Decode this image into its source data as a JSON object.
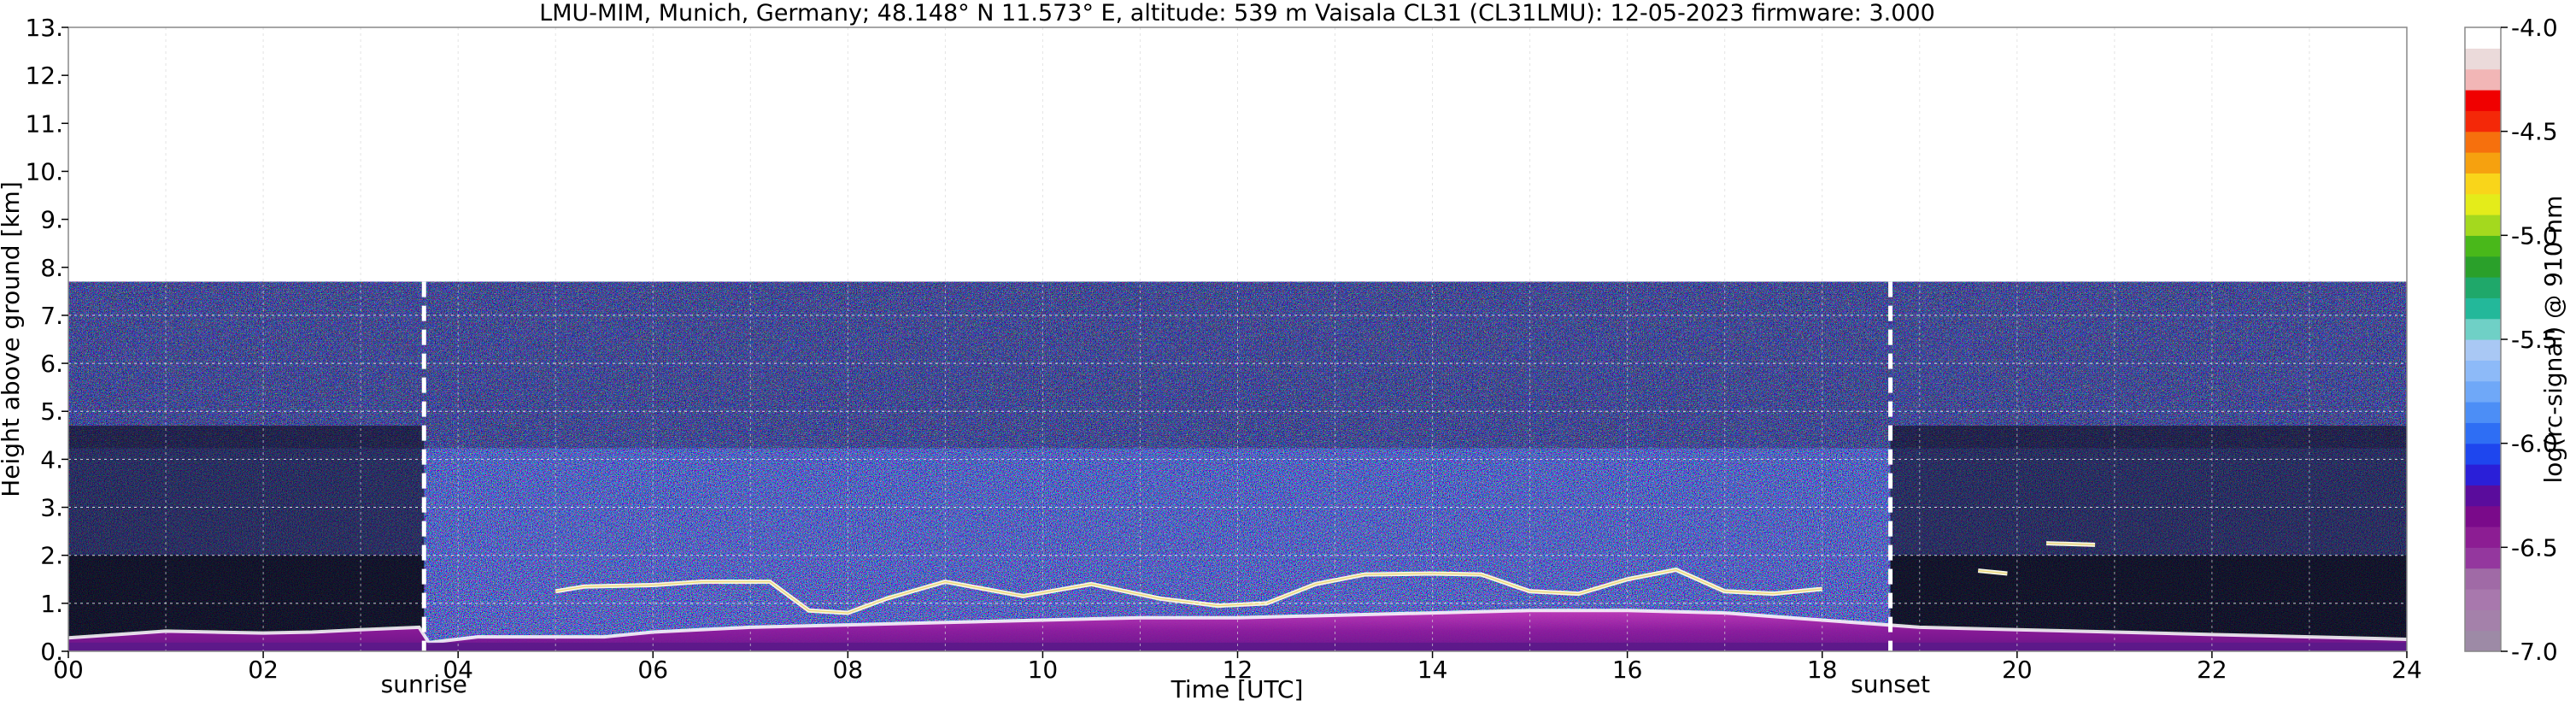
{
  "chart_data": {
    "type": "heatmap",
    "title": "LMU-MIM, Munich, Germany; 48.148° N 11.573° E, altitude: 539 m    Vaisala CL31 (CL31LMU): 12-05-2023    firmware: 3.000",
    "xlabel": "Time [UTC]",
    "ylabel": "Height above ground [km]",
    "xlim": [
      0,
      24
    ],
    "ylim": [
      0,
      13
    ],
    "x_ticks": [
      {
        "value": 0,
        "label": "00"
      },
      {
        "value": 2,
        "label": "02"
      },
      {
        "value": 4,
        "label": "04"
      },
      {
        "value": 6,
        "label": "06"
      },
      {
        "value": 8,
        "label": "08"
      },
      {
        "value": 10,
        "label": "10"
      },
      {
        "value": 12,
        "label": "12"
      },
      {
        "value": 14,
        "label": "14"
      },
      {
        "value": 16,
        "label": "16"
      },
      {
        "value": 18,
        "label": "18"
      },
      {
        "value": 20,
        "label": "20"
      },
      {
        "value": 22,
        "label": "22"
      },
      {
        "value": 24,
        "label": "24"
      }
    ],
    "y_ticks": [
      {
        "value": 0,
        "label": "0."
      },
      {
        "value": 1,
        "label": "1."
      },
      {
        "value": 2,
        "label": "2."
      },
      {
        "value": 3,
        "label": "3."
      },
      {
        "value": 4,
        "label": "4."
      },
      {
        "value": 5,
        "label": "5."
      },
      {
        "value": 6,
        "label": "6."
      },
      {
        "value": 7,
        "label": "7."
      },
      {
        "value": 8,
        "label": "8."
      },
      {
        "value": 9,
        "label": "9."
      },
      {
        "value": 10,
        "label": "10."
      },
      {
        "value": 11,
        "label": "11."
      },
      {
        "value": 12,
        "label": "12."
      },
      {
        "value": 13,
        "label": "13."
      }
    ],
    "grid": true,
    "data_top_height_km": 7.7,
    "annotations": [
      {
        "label": "sunrise",
        "time": 3.65
      },
      {
        "label": "sunset",
        "time": 18.7
      }
    ],
    "colorbar": {
      "label": "log(rc-signal) @ 910 nm",
      "range": [
        -7.0,
        -4.0
      ],
      "ticks": [
        {
          "value": -4.0,
          "label": "-4.0"
        },
        {
          "value": -4.5,
          "label": "-4.5"
        },
        {
          "value": -5.0,
          "label": "-5.0"
        },
        {
          "value": -5.5,
          "label": "-5.5"
        },
        {
          "value": -6.0,
          "label": "-6.0"
        },
        {
          "value": -6.5,
          "label": "-6.5"
        },
        {
          "value": -7.0,
          "label": "-7.0"
        }
      ],
      "colors_bottom_to_top": [
        "#9d8aa6",
        "#a481aa",
        "#a878ad",
        "#a06aa6",
        "#94379e",
        "#8c1d93",
        "#7a0a8a",
        "#5a0c9c",
        "#2a1fd8",
        "#1e46ee",
        "#2e6ef4",
        "#4c8ef6",
        "#6fa8f8",
        "#8dbaf8",
        "#a9c8f4",
        "#6fd0c6",
        "#23b89a",
        "#1fa86a",
        "#2aa02a",
        "#49b81a",
        "#a4d91e",
        "#e4ec1a",
        "#f9d51a",
        "#f6a10f",
        "#f6700d",
        "#f42808",
        "#f00000",
        "#f2b6b6",
        "#ebdada",
        "#ffffff"
      ]
    },
    "signal_layers": [
      {
        "name": "boundary layer",
        "points": [
          [
            0,
            0.28
          ],
          [
            0.5,
            0.35
          ],
          [
            1,
            0.42
          ],
          [
            1.5,
            0.4
          ],
          [
            2,
            0.38
          ],
          [
            2.5,
            0.4
          ],
          [
            3,
            0.45
          ],
          [
            3.6,
            0.5
          ],
          [
            3.7,
            0.18
          ],
          [
            4.2,
            0.3
          ],
          [
            5.5,
            0.3
          ],
          [
            6,
            0.4
          ],
          [
            7,
            0.5
          ],
          [
            8,
            0.55
          ],
          [
            9,
            0.6
          ],
          [
            10,
            0.65
          ],
          [
            11,
            0.7
          ],
          [
            12,
            0.7
          ],
          [
            13,
            0.75
          ],
          [
            14,
            0.8
          ],
          [
            15,
            0.85
          ],
          [
            16,
            0.85
          ],
          [
            17,
            0.8
          ],
          [
            18,
            0.65
          ],
          [
            19,
            0.5
          ],
          [
            20,
            0.45
          ],
          [
            21,
            0.4
          ],
          [
            22,
            0.35
          ],
          [
            23,
            0.3
          ],
          [
            24,
            0.25
          ]
        ]
      },
      {
        "name": "cloud layer",
        "points": [
          [
            5.0,
            1.25
          ],
          [
            5.3,
            1.35
          ],
          [
            6.0,
            1.38
          ],
          [
            6.5,
            1.45
          ],
          [
            7.2,
            1.45
          ],
          [
            7.6,
            0.85
          ],
          [
            8.0,
            0.8
          ],
          [
            8.4,
            1.1
          ],
          [
            9.0,
            1.45
          ],
          [
            9.8,
            1.15
          ],
          [
            10.5,
            1.4
          ],
          [
            11.2,
            1.1
          ],
          [
            11.8,
            0.95
          ],
          [
            12.3,
            1.0
          ],
          [
            12.8,
            1.4
          ],
          [
            13.3,
            1.6
          ],
          [
            14.0,
            1.62
          ],
          [
            14.5,
            1.6
          ],
          [
            15.0,
            1.25
          ],
          [
            15.5,
            1.2
          ],
          [
            16.0,
            1.5
          ],
          [
            16.5,
            1.7
          ],
          [
            17.0,
            1.25
          ],
          [
            17.5,
            1.2
          ],
          [
            18.0,
            1.3
          ]
        ]
      },
      {
        "name": "cloud patch",
        "points": [
          [
            19.6,
            1.68
          ],
          [
            19.9,
            1.62
          ]
        ]
      },
      {
        "name": "cloud patch",
        "points": [
          [
            20.3,
            2.25
          ],
          [
            20.8,
            2.22
          ]
        ]
      }
    ],
    "night_segments": [
      [
        0,
        3.65
      ],
      [
        18.7,
        24
      ]
    ]
  }
}
